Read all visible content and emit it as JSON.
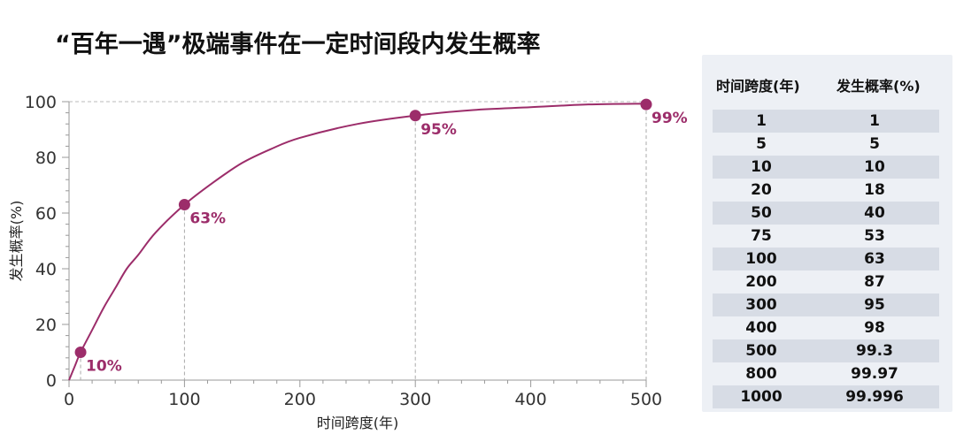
{
  "title": "“百年一遇”极端事件在一定时间段内发生概率",
  "chart_data": {
    "type": "line",
    "xlabel": "时间跨度(年)",
    "ylabel": "发生概率(%)",
    "xlim": [
      0,
      500
    ],
    "ylim": [
      0,
      100
    ],
    "xticks": [
      "0",
      "100",
      "200",
      "300",
      "400",
      "500"
    ],
    "yticks": [
      "0",
      "20",
      "40",
      "60",
      "80",
      "100"
    ],
    "series": [
      {
        "x": [
          0,
          1,
          5,
          10,
          20,
          30,
          40,
          50,
          60,
          75,
          100,
          125,
          150,
          175,
          200,
          250,
          300,
          350,
          400,
          450,
          500
        ],
        "values": [
          0,
          1,
          5,
          10,
          18,
          26,
          33,
          40,
          45,
          53,
          63,
          71,
          78,
          83,
          87,
          92,
          95,
          97,
          98,
          99,
          99.3
        ],
        "color": "#9c2d6a"
      }
    ],
    "markers": [
      {
        "x": 10,
        "y": 10,
        "label": "10%"
      },
      {
        "x": 100,
        "y": 63,
        "label": "63%"
      },
      {
        "x": 300,
        "y": 95,
        "label": "95%"
      },
      {
        "x": 500,
        "y": 99,
        "label": "99%"
      }
    ],
    "grid": false,
    "reference_lines": "dashed lines from markers to axes"
  },
  "table": {
    "headers": [
      "时间跨度(年)",
      "发生概率(%)"
    ],
    "rows": [
      [
        "1",
        "1"
      ],
      [
        "5",
        "5"
      ],
      [
        "10",
        "10"
      ],
      [
        "20",
        "18"
      ],
      [
        "50",
        "40"
      ],
      [
        "75",
        "53"
      ],
      [
        "100",
        "63"
      ],
      [
        "200",
        "87"
      ],
      [
        "300",
        "95"
      ],
      [
        "400",
        "98"
      ],
      [
        "500",
        "99.3"
      ],
      [
        "800",
        "99.97"
      ],
      [
        "1000",
        "99.996"
      ]
    ]
  },
  "colors": {
    "accent": "#9c2d6a",
    "table_bg": "#edf0f5",
    "table_stripe": "#d7dce5"
  }
}
